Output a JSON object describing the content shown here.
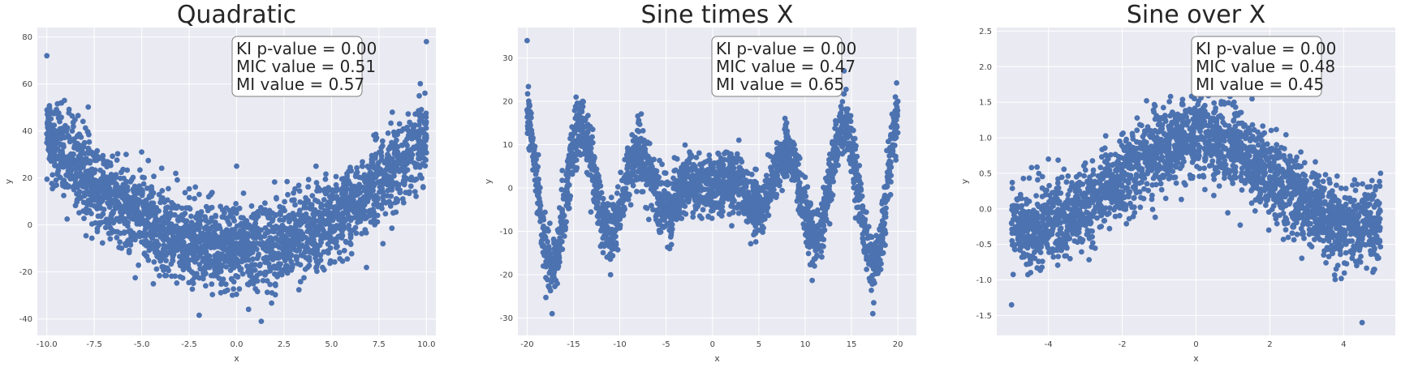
{
  "colors": {
    "axes_bg": "#EAEAF2",
    "grid": "#FFFFFF",
    "points": "#4C72B0",
    "annot_edge": "#7F7F7F"
  },
  "chart_data": [
    {
      "type": "scatter",
      "title": "Quadratic",
      "xlabel": "x",
      "ylabel": "y",
      "xlim": [
        -10.5,
        10.5
      ],
      "ylim": [
        -47,
        84
      ],
      "xticks": [
        "-10.0",
        "-7.5",
        "-5.0",
        "-2.5",
        "0.0",
        "2.5",
        "5.0",
        "7.5",
        "10.0"
      ],
      "xtick_values": [
        -10,
        -7.5,
        -5,
        -2.5,
        0,
        2.5,
        5,
        7.5,
        10
      ],
      "yticks": [
        "-40",
        "-20",
        "0",
        "20",
        "40",
        "60",
        "80"
      ],
      "ytick_values": [
        -40,
        -20,
        0,
        20,
        40,
        60,
        80
      ],
      "grid": true,
      "series": [
        {
          "model": "y = 0.5*x^2 - 10 + noise",
          "x_range": [
            -10,
            10
          ],
          "noise_sd": 9,
          "sample_points": [
            [
              -10,
              72
            ],
            [
              -10,
              35
            ],
            [
              -5,
              15
            ],
            [
              0,
              -8
            ],
            [
              0,
              25
            ],
            [
              1.3,
              -41
            ],
            [
              5,
              12
            ],
            [
              10,
              78
            ],
            [
              10,
              37
            ]
          ]
        }
      ],
      "annotation": [
        "KI p-value = 0.00",
        "MIC value = 0.51",
        "MI value = 0.57"
      ],
      "annotation_position": "top-right"
    },
    {
      "type": "scatter",
      "title": "Sine times X",
      "xlabel": "x",
      "ylabel": "y",
      "xlim": [
        -21,
        22
      ],
      "ylim": [
        -34,
        37
      ],
      "xticks": [
        "-20",
        "-15",
        "-10",
        "-5",
        "0",
        "5",
        "10",
        "15",
        "20"
      ],
      "xtick_values": [
        -20,
        -15,
        -10,
        -5,
        0,
        5,
        10,
        15,
        20
      ],
      "yticks": [
        "-30",
        "-20",
        "-10",
        "0",
        "10",
        "20",
        "30"
      ],
      "ytick_values": [
        -30,
        -20,
        -10,
        0,
        10,
        20,
        30
      ],
      "grid": true,
      "series": [
        {
          "model": "y = x*sin(x) + noise",
          "x_range": [
            -20,
            20
          ],
          "noise_sd": 3.5,
          "sample_points": [
            [
              -20,
              34
            ],
            [
              -20,
              18
            ],
            [
              -17.3,
              -29
            ],
            [
              -14,
              20
            ],
            [
              -11,
              -20
            ],
            [
              -8,
              15
            ],
            [
              0,
              0
            ],
            [
              8,
              15
            ],
            [
              11,
              -18
            ],
            [
              14.2,
              27
            ],
            [
              17.3,
              -29
            ],
            [
              20,
              20
            ]
          ]
        }
      ],
      "annotation": [
        "KI p-value = 0.00",
        "MIC value = 0.47",
        "MI value = 0.65"
      ],
      "annotation_position": "top-center"
    },
    {
      "type": "scatter",
      "title": "Sine over X",
      "xlabel": "x",
      "ylabel": "y",
      "xlim": [
        -5.4,
        5.4
      ],
      "ylim": [
        -1.78,
        2.55
      ],
      "xticks": [
        "-4",
        "-2",
        "0",
        "2",
        "4"
      ],
      "xtick_values": [
        -4,
        -2,
        0,
        2,
        4
      ],
      "yticks": [
        "-1.5",
        "-1.0",
        "-0.5",
        "0.0",
        "0.5",
        "1.0",
        "1.5",
        "2.0",
        "2.5"
      ],
      "ytick_values": [
        -1.5,
        -1.0,
        -0.5,
        0.0,
        0.5,
        1.0,
        1.5,
        2.0,
        2.5
      ],
      "grid": true,
      "series": [
        {
          "model": "y = sin(x)/x + noise",
          "x_range": [
            -5,
            5
          ],
          "noise_sd": 0.28,
          "sample_points": [
            [
              -5,
              -0.2
            ],
            [
              -5,
              -1.35
            ],
            [
              -4,
              0.7
            ],
            [
              -2,
              0.5
            ],
            [
              0,
              1.0
            ],
            [
              0.3,
              2.1
            ],
            [
              2,
              0.45
            ],
            [
              4,
              -0.2
            ],
            [
              4.5,
              -1.6
            ],
            [
              5,
              0.5
            ]
          ]
        }
      ],
      "annotation": [
        "KI p-value = 0.00",
        "MIC value = 0.48",
        "MI value = 0.45"
      ],
      "annotation_position": "top-center"
    }
  ]
}
